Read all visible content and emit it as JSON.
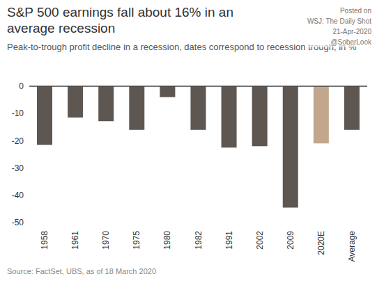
{
  "chart_data": {
    "type": "bar",
    "title": "S&P 500 earnings fall about 16% in an average recession",
    "subtitle": "Peak-to-trough profit decline in a recession, dates correspond to recession trough, in %",
    "source": "Source: FactSet, UBS, as of 18 March 2020",
    "annotations": [
      "Posted on",
      "WSJ: The Daily Shot",
      "21-Apr-2020",
      "@SoberLook"
    ],
    "categories": [
      "1958",
      "1961",
      "1970",
      "1975",
      "1980",
      "1982",
      "1991",
      "2002",
      "2009",
      "2020E",
      "Average"
    ],
    "values": [
      -21.5,
      -11.5,
      -12.8,
      -16,
      -4,
      -16,
      -22.5,
      -22,
      -44.5,
      -21,
      -16
    ],
    "colors": [
      "#5e5650",
      "#5e5650",
      "#5e5650",
      "#5e5650",
      "#5e5650",
      "#5e5650",
      "#5e5650",
      "#5e5650",
      "#5e5650",
      "#c2a78d",
      "#5e5650"
    ],
    "ylim": [
      -50,
      0
    ],
    "yticks": [
      -50,
      -40,
      -30,
      -20,
      -10,
      0
    ],
    "grid": false
  }
}
